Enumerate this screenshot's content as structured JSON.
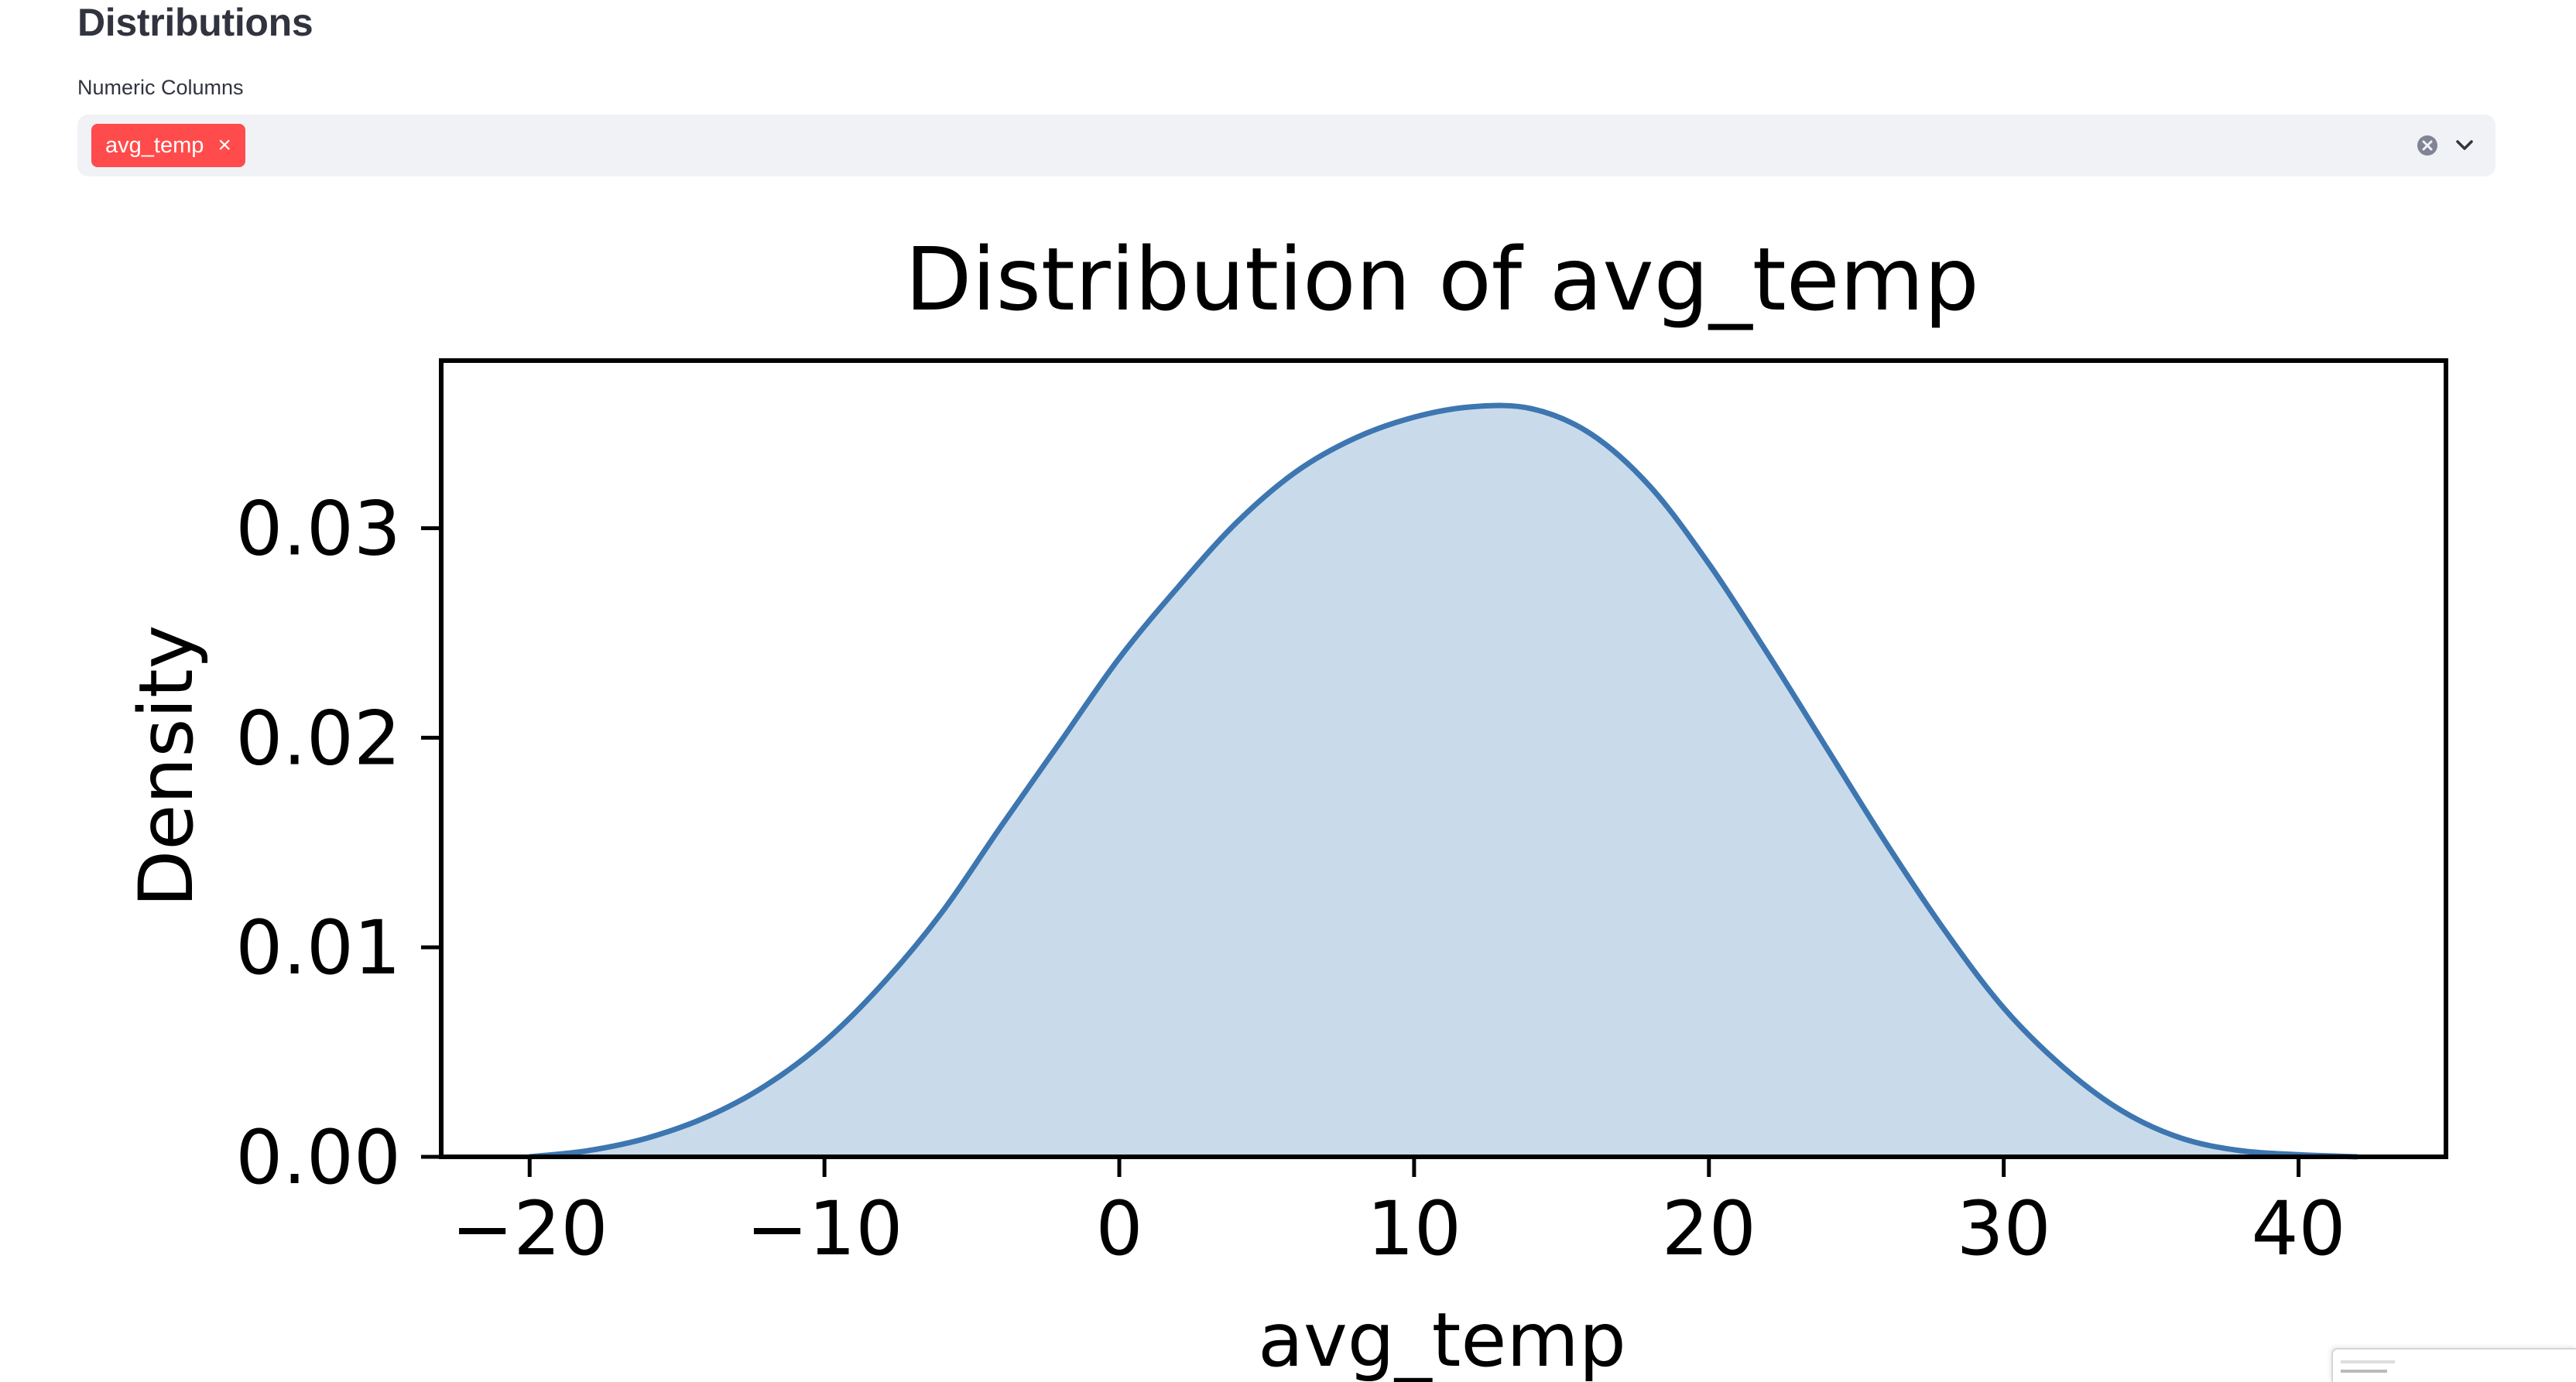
{
  "section": {
    "title": "Distributions"
  },
  "numeric_columns": {
    "label": "Numeric Columns",
    "selected": [
      "avg_temp"
    ],
    "remove_glyph": "×"
  },
  "colors": {
    "accent": "#ff4b4b",
    "input_bg": "#f0f2f6",
    "kde_line": "#3d76b0",
    "kde_fill": "#c9dbea"
  },
  "chart_data": {
    "type": "area",
    "title": "Distribution of avg_temp",
    "xlabel": "avg_temp",
    "ylabel": "Density",
    "xlim": [
      -23,
      45
    ],
    "ylim": [
      0,
      0.038
    ],
    "xticks": [
      -20,
      -10,
      0,
      10,
      20,
      30,
      40
    ],
    "xtick_labels": [
      "−20",
      "−10",
      "0",
      "10",
      "20",
      "30",
      "40"
    ],
    "yticks": [
      0.0,
      0.01,
      0.02,
      0.03
    ],
    "ytick_labels": [
      "0.00",
      "0.01",
      "0.02",
      "0.03"
    ],
    "grid": false,
    "series": [
      {
        "x": [
          -20,
          -18,
          -16,
          -14,
          -12,
          -10,
          -8,
          -6,
          -4,
          -2,
          0,
          2,
          4,
          6,
          8,
          10,
          12,
          14,
          16,
          18,
          20,
          22,
          24,
          26,
          28,
          30,
          32,
          34,
          36,
          38,
          40,
          42
        ],
        "y": [
          0.0,
          0.0003,
          0.0009,
          0.0019,
          0.0034,
          0.0055,
          0.0083,
          0.0117,
          0.0158,
          0.0198,
          0.0238,
          0.0272,
          0.0303,
          0.0327,
          0.0343,
          0.0353,
          0.0358,
          0.0357,
          0.0345,
          0.032,
          0.0283,
          0.024,
          0.0195,
          0.015,
          0.0108,
          0.0071,
          0.0043,
          0.0022,
          0.0009,
          0.0003,
          0.0001,
          0.0
        ]
      }
    ]
  }
}
